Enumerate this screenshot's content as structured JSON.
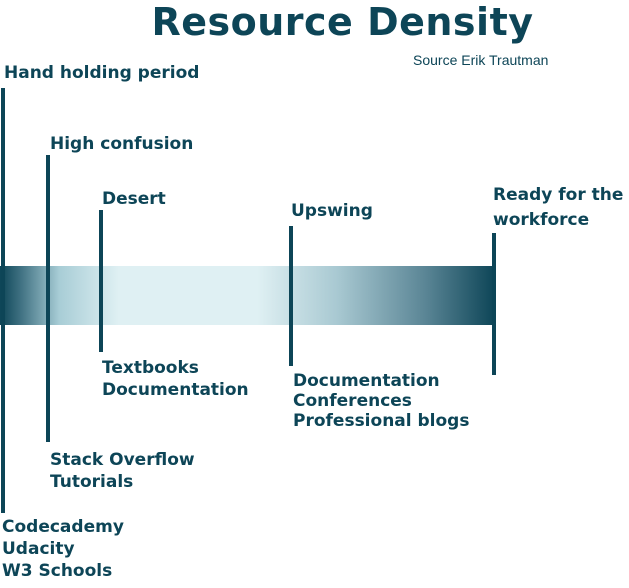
{
  "title": "Resource Density",
  "source": "Source Erik Trautman",
  "colors": {
    "primary": "#0d4557",
    "band_light": "#dff0f3"
  },
  "stages": [
    {
      "label_lines": [
        "Hand holding period"
      ],
      "resources": [
        "Codecademy",
        "Udacity",
        "W3 Schools"
      ]
    },
    {
      "label_lines": [
        "High confusion"
      ],
      "resources": [
        "Stack Overflow",
        "Tutorials"
      ]
    },
    {
      "label_lines": [
        "Desert"
      ],
      "resources": [
        "Textbooks",
        "Documentation"
      ]
    },
    {
      "label_lines": [
        "Upswing"
      ],
      "resources": [
        "Documentation",
        "Conferences",
        "Professional blogs"
      ]
    },
    {
      "label_lines": [
        "Ready for the",
        "workforce"
      ],
      "resources": []
    }
  ]
}
